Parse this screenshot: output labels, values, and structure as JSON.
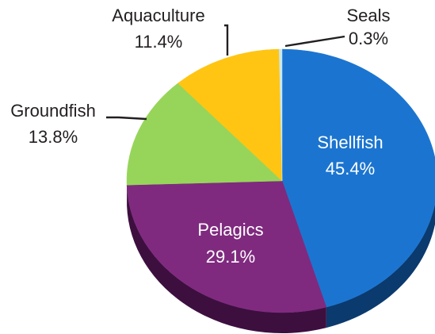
{
  "chart_data": {
    "type": "pie",
    "title": "",
    "slices": [
      {
        "name": "Shellfish",
        "value": 45.4,
        "label": "45.4%",
        "color": "#1b75d0",
        "side": "#0b3a6e"
      },
      {
        "name": "Pelagics",
        "value": 29.1,
        "label": "29.1%",
        "color": "#7f2a7f",
        "side": "#3d0f3f"
      },
      {
        "name": "Groundfish",
        "value": 13.8,
        "label": "13.8%",
        "color": "#97d55a",
        "side": "#4f7d26"
      },
      {
        "name": "Aquaculture",
        "value": 11.4,
        "label": "11.4%",
        "color": "#ffc512",
        "side": "#8a6a00"
      },
      {
        "name": "Seals",
        "value": 0.3,
        "label": "0.3%",
        "color": "#c8e8f4",
        "side": "#7aa8b8"
      }
    ]
  }
}
